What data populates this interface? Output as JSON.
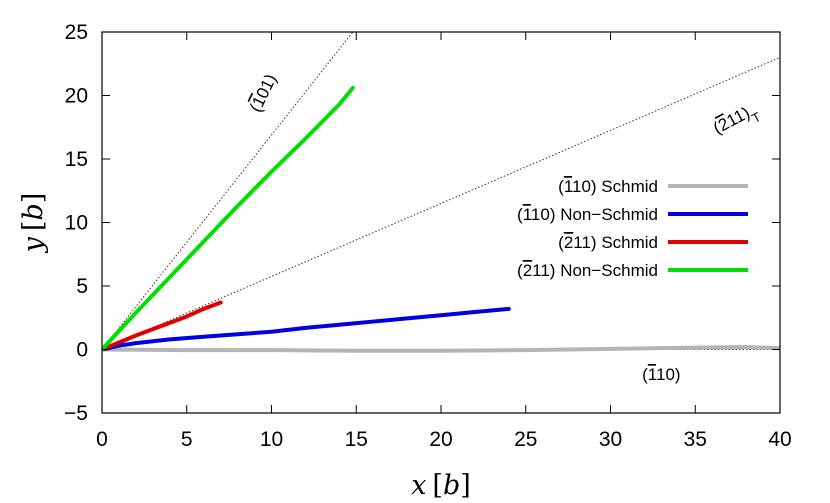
{
  "chart_data": {
    "type": "line",
    "xlabel_var": "x",
    "xlabel_unit": "b",
    "ylabel_var": "y",
    "ylabel_unit": "b",
    "xlim": [
      0,
      40
    ],
    "ylim": [
      -5,
      25
    ],
    "xticks": [
      0,
      5,
      10,
      15,
      20,
      25,
      30,
      35,
      40
    ],
    "yticks": [
      -5,
      0,
      5,
      10,
      15,
      20,
      25
    ],
    "xtick_labels": [
      "0",
      "5",
      "10",
      "15",
      "20",
      "25",
      "30",
      "35",
      "40"
    ],
    "ytick_labels": [
      "−5",
      "0",
      "5",
      "10",
      "15",
      "20",
      "25"
    ],
    "grid": false,
    "legend_position": "right",
    "series": [
      {
        "name": "(̅1̅1̅0) Schmid",
        "label_parts": [
          "(",
          "1",
          "10) Schmid"
        ],
        "color": "#b4b4b4",
        "x": [
          0,
          5,
          10,
          15,
          20,
          25,
          30,
          35,
          38,
          40
        ],
        "y": [
          0,
          -0.05,
          -0.05,
          -0.1,
          -0.1,
          -0.05,
          0.05,
          0.15,
          0.2,
          0.1
        ]
      },
      {
        "name": "(̅1 10) Non−Schmid",
        "label_parts": [
          "(",
          "1",
          "10) Non−Schmid"
        ],
        "color": "#0000e0",
        "x": [
          0,
          1,
          2,
          4,
          6,
          8,
          10,
          12,
          14,
          16,
          18,
          20,
          22,
          24
        ],
        "y": [
          0,
          0.3,
          0.5,
          0.8,
          1.0,
          1.2,
          1.4,
          1.7,
          1.95,
          2.2,
          2.45,
          2.7,
          2.95,
          3.2
        ]
      },
      {
        "name": "(2 11) Schmid",
        "label_parts": [
          "(",
          "2",
          "11) Schmid"
        ],
        "color": "#e00000",
        "x": [
          0,
          1,
          2,
          3,
          4,
          5,
          6,
          7
        ],
        "y": [
          0,
          0.55,
          1.1,
          1.6,
          2.1,
          2.6,
          3.2,
          3.7
        ]
      },
      {
        "name": "(2 11) Non−Schmid",
        "label_parts": [
          "(",
          "2",
          "11) Non−Schmid"
        ],
        "color": "#00e000",
        "x": [
          0,
          2,
          4,
          6,
          8,
          10,
          12,
          14,
          14.8
        ],
        "y": [
          0,
          2.9,
          5.7,
          8.5,
          11.3,
          14.0,
          16.6,
          19.3,
          20.6
        ]
      }
    ],
    "reference_lines": [
      {
        "x": [
          0,
          14.8
        ],
        "y": [
          0,
          25
        ],
        "style": "dotted"
      },
      {
        "x": [
          0,
          40
        ],
        "y": [
          0,
          23
        ],
        "style": "dotted"
      },
      {
        "x": [
          0,
          40
        ],
        "y": [
          0,
          0
        ],
        "style": "dotted"
      }
    ],
    "annotations": [
      {
        "id": "a101",
        "parts": [
          "(",
          "1",
          "01)"
        ],
        "x": 9.8,
        "y": 20,
        "rotate": -64
      },
      {
        "id": "a211T",
        "parts": [
          "(",
          "2",
          "11)",
          "T"
        ],
        "x": 37.5,
        "y": 17.8,
        "rotate": -28
      },
      {
        "id": "a110",
        "parts": [
          "(",
          "1",
          "10)"
        ],
        "x": 33.0,
        "y": -2.4,
        "rotate": 0
      }
    ]
  }
}
